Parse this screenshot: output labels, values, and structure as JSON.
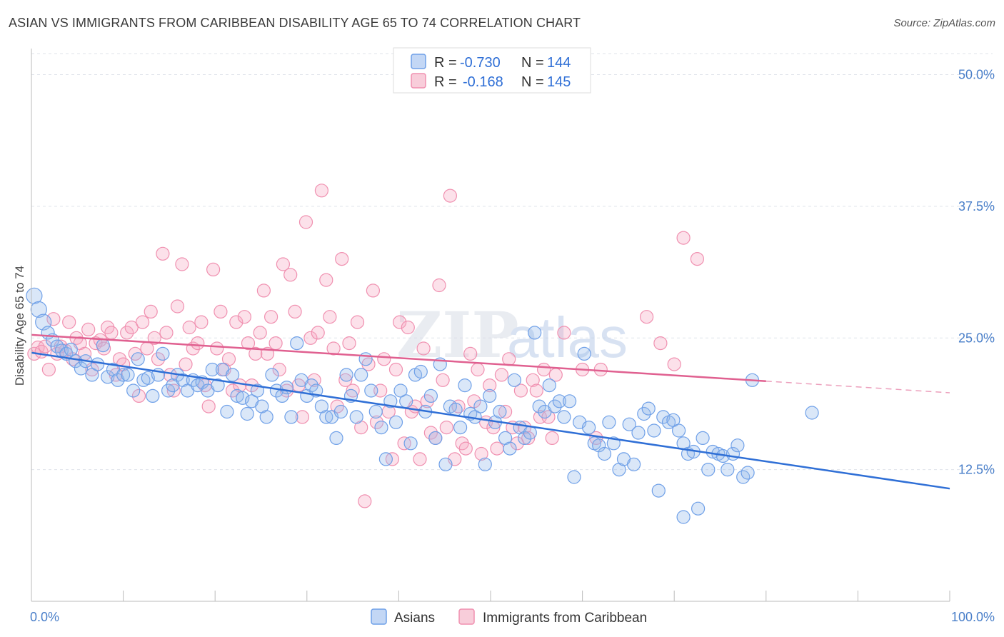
{
  "title": "ASIAN VS IMMIGRANTS FROM CARIBBEAN DISABILITY AGE 65 TO 74 CORRELATION CHART",
  "source": "Source: ZipAtlas.com",
  "watermark": {
    "zip": "ZIP",
    "atlas": "atlas"
  },
  "legend_top": {
    "r_label": "R =",
    "n_label": "N =",
    "rows": [
      {
        "r": "-0.730",
        "n": "144",
        "color": "#6fa0e8"
      },
      {
        "r": "-0.168",
        "n": "145",
        "color": "#f090b0"
      }
    ]
  },
  "legend_bottom": [
    "Asians",
    "Immigrants from Caribbean"
  ],
  "chart_data": {
    "type": "scatter",
    "xlabel": "",
    "ylabel": "Disability Age 65 to 74",
    "xlim": [
      0,
      100
    ],
    "ylim": [
      0,
      52
    ],
    "x_tick_labels": [
      "0.0%",
      "100.0%"
    ],
    "y_ticks": [
      12.5,
      25.0,
      37.5,
      50.0
    ],
    "y_tick_labels": [
      "12.5%",
      "25.0%",
      "37.5%",
      "50.0%"
    ],
    "grid": "horizontal dashed",
    "series": [
      {
        "name": "Asians",
        "color": "#6fa0e8",
        "line_color": "#2f6fd6",
        "trend": {
          "x0": 0,
          "y0": 23.6,
          "x1": 100,
          "y1": 10.7
        },
        "points": [
          [
            0.3,
            29.0
          ],
          [
            0.8,
            27.7
          ],
          [
            1.3,
            26.5
          ],
          [
            1.8,
            25.5
          ],
          [
            2.3,
            24.8
          ],
          [
            2.8,
            24.2
          ],
          [
            3.3,
            23.8
          ],
          [
            3.8,
            23.5
          ],
          [
            4.3,
            23.9
          ],
          [
            4.8,
            22.8
          ],
          [
            5.4,
            22.1
          ],
          [
            5.9,
            22.8
          ],
          [
            6.6,
            21.5
          ],
          [
            7.2,
            22.5
          ],
          [
            7.8,
            24.3
          ],
          [
            8.3,
            21.3
          ],
          [
            8.9,
            22.0
          ],
          [
            9.4,
            21.0
          ],
          [
            10.0,
            21.5
          ],
          [
            10.5,
            21.5
          ],
          [
            11.1,
            20.0
          ],
          [
            11.6,
            23.0
          ],
          [
            12.2,
            21.0
          ],
          [
            12.7,
            21.2
          ],
          [
            13.2,
            19.5
          ],
          [
            13.8,
            21.5
          ],
          [
            14.3,
            23.5
          ],
          [
            14.9,
            20.0
          ],
          [
            15.4,
            20.5
          ],
          [
            15.9,
            21.5
          ],
          [
            16.5,
            21.0
          ],
          [
            17.0,
            20.0
          ],
          [
            17.6,
            21.0
          ],
          [
            18.1,
            20.5
          ],
          [
            18.6,
            20.8
          ],
          [
            19.2,
            20.0
          ],
          [
            19.7,
            22.0
          ],
          [
            20.3,
            20.5
          ],
          [
            20.8,
            22.0
          ],
          [
            21.3,
            18.0
          ],
          [
            21.9,
            21.5
          ],
          [
            22.4,
            19.5
          ],
          [
            23.0,
            19.3
          ],
          [
            23.5,
            17.8
          ],
          [
            24.0,
            19.0
          ],
          [
            24.6,
            20.0
          ],
          [
            25.1,
            18.5
          ],
          [
            25.6,
            17.5
          ],
          [
            26.2,
            21.5
          ],
          [
            26.7,
            20.0
          ],
          [
            27.3,
            19.5
          ],
          [
            27.8,
            20.3
          ],
          [
            28.3,
            17.5
          ],
          [
            28.9,
            24.5
          ],
          [
            29.4,
            21.0
          ],
          [
            30.0,
            19.5
          ],
          [
            30.5,
            20.5
          ],
          [
            31.0,
            20.0
          ],
          [
            31.6,
            18.5
          ],
          [
            32.1,
            17.5
          ],
          [
            32.7,
            17.5
          ],
          [
            33.2,
            15.5
          ],
          [
            33.7,
            18.0
          ],
          [
            34.3,
            21.5
          ],
          [
            34.8,
            19.5
          ],
          [
            35.4,
            17.5
          ],
          [
            35.9,
            21.5
          ],
          [
            36.4,
            23.0
          ],
          [
            37.0,
            20.0
          ],
          [
            37.5,
            18.0
          ],
          [
            38.1,
            16.5
          ],
          [
            38.6,
            13.5
          ],
          [
            39.1,
            19.0
          ],
          [
            39.7,
            17.0
          ],
          [
            40.2,
            20.0
          ],
          [
            40.8,
            19.0
          ],
          [
            41.3,
            15.0
          ],
          [
            41.8,
            21.5
          ],
          [
            42.4,
            21.8
          ],
          [
            42.9,
            18.0
          ],
          [
            43.5,
            19.5
          ],
          [
            44.0,
            15.5
          ],
          [
            44.5,
            22.5
          ],
          [
            45.1,
            13.0
          ],
          [
            45.6,
            18.5
          ],
          [
            46.2,
            18.2
          ],
          [
            46.7,
            16.5
          ],
          [
            47.2,
            20.5
          ],
          [
            47.8,
            17.8
          ],
          [
            48.3,
            17.5
          ],
          [
            48.9,
            18.5
          ],
          [
            49.4,
            13.0
          ],
          [
            49.9,
            19.5
          ],
          [
            50.5,
            17.0
          ],
          [
            51.0,
            18.0
          ],
          [
            51.6,
            15.5
          ],
          [
            52.1,
            14.5
          ],
          [
            52.6,
            21.0
          ],
          [
            53.2,
            16.5
          ],
          [
            53.7,
            15.5
          ],
          [
            54.3,
            16.0
          ],
          [
            54.8,
            25.5
          ],
          [
            55.3,
            18.5
          ],
          [
            55.9,
            18.0
          ],
          [
            56.4,
            20.5
          ],
          [
            57.0,
            18.5
          ],
          [
            57.5,
            19.0
          ],
          [
            58.0,
            17.5
          ],
          [
            58.6,
            19.0
          ],
          [
            59.1,
            11.8
          ],
          [
            59.7,
            17.0
          ],
          [
            60.2,
            23.5
          ],
          [
            60.7,
            16.5
          ],
          [
            61.3,
            15.0
          ],
          [
            61.8,
            14.8
          ],
          [
            62.4,
            14.0
          ],
          [
            62.9,
            17.0
          ],
          [
            63.4,
            15.0
          ],
          [
            64.0,
            12.5
          ],
          [
            64.5,
            13.5
          ],
          [
            65.1,
            16.8
          ],
          [
            65.6,
            13.0
          ],
          [
            66.1,
            16.0
          ],
          [
            66.7,
            17.8
          ],
          [
            67.2,
            18.3
          ],
          [
            67.8,
            16.2
          ],
          [
            68.3,
            10.5
          ],
          [
            68.8,
            17.5
          ],
          [
            69.4,
            17.0
          ],
          [
            69.9,
            17.2
          ],
          [
            70.5,
            16.2
          ],
          [
            71.0,
            15.0
          ],
          [
            71.5,
            14.0
          ],
          [
            72.1,
            14.2
          ],
          [
            72.6,
            8.8
          ],
          [
            73.1,
            15.5
          ],
          [
            73.7,
            12.5
          ],
          [
            74.2,
            14.2
          ],
          [
            74.8,
            14.0
          ],
          [
            75.3,
            13.8
          ],
          [
            75.8,
            12.5
          ],
          [
            76.4,
            14.0
          ],
          [
            76.9,
            14.8
          ],
          [
            77.5,
            11.8
          ],
          [
            78.0,
            12.2
          ],
          [
            78.5,
            21.0
          ],
          [
            85.0,
            17.9
          ],
          [
            71.0,
            8.0
          ]
        ]
      },
      {
        "name": "Immigrants from Caribbean",
        "color": "#f090b0",
        "line_color": "#e06090",
        "trend": {
          "x0": 0,
          "y0": 25.3,
          "x1": 80,
          "y1": 20.9
        },
        "trend_dashed": {
          "x0": 80,
          "y0": 20.9,
          "x1": 100,
          "y1": 19.8
        },
        "points": [
          [
            0.3,
            23.5
          ],
          [
            0.7,
            24.1
          ],
          [
            1.1,
            23.7
          ],
          [
            1.5,
            24.2
          ],
          [
            1.9,
            22.0
          ],
          [
            2.4,
            26.8
          ],
          [
            2.8,
            23.5
          ],
          [
            3.2,
            24.2
          ],
          [
            3.7,
            23.8
          ],
          [
            4.1,
            26.5
          ],
          [
            4.5,
            23.0
          ],
          [
            4.9,
            25.0
          ],
          [
            5.3,
            24.5
          ],
          [
            5.8,
            23.5
          ],
          [
            6.2,
            25.8
          ],
          [
            6.6,
            22.0
          ],
          [
            7.0,
            24.5
          ],
          [
            7.5,
            24.8
          ],
          [
            7.9,
            24.0
          ],
          [
            8.3,
            26.0
          ],
          [
            8.7,
            25.5
          ],
          [
            9.2,
            21.5
          ],
          [
            9.6,
            23.0
          ],
          [
            10.0,
            22.5
          ],
          [
            10.4,
            25.5
          ],
          [
            10.9,
            26.0
          ],
          [
            11.3,
            23.5
          ],
          [
            11.7,
            19.5
          ],
          [
            12.1,
            26.5
          ],
          [
            12.6,
            24.0
          ],
          [
            13.0,
            27.5
          ],
          [
            13.4,
            25.0
          ],
          [
            13.8,
            23.0
          ],
          [
            14.3,
            33.0
          ],
          [
            14.7,
            25.5
          ],
          [
            15.1,
            21.5
          ],
          [
            15.5,
            20.0
          ],
          [
            15.9,
            28.0
          ],
          [
            16.4,
            32.0
          ],
          [
            16.8,
            22.5
          ],
          [
            17.2,
            26.0
          ],
          [
            17.6,
            24.0
          ],
          [
            18.1,
            24.5
          ],
          [
            18.5,
            26.5
          ],
          [
            18.9,
            20.5
          ],
          [
            19.3,
            18.5
          ],
          [
            19.8,
            31.5
          ],
          [
            20.2,
            24.0
          ],
          [
            20.6,
            27.5
          ],
          [
            21.0,
            22.0
          ],
          [
            21.5,
            23.0
          ],
          [
            21.9,
            20.0
          ],
          [
            22.3,
            26.5
          ],
          [
            22.7,
            20.5
          ],
          [
            23.2,
            27.0
          ],
          [
            23.6,
            24.5
          ],
          [
            24.0,
            20.5
          ],
          [
            24.4,
            23.5
          ],
          [
            24.9,
            25.5
          ],
          [
            25.3,
            29.5
          ],
          [
            25.7,
            23.5
          ],
          [
            26.1,
            27.0
          ],
          [
            26.6,
            24.5
          ],
          [
            27.0,
            22.0
          ],
          [
            27.4,
            32.0
          ],
          [
            27.8,
            20.0
          ],
          [
            28.2,
            31.0
          ],
          [
            28.7,
            27.5
          ],
          [
            29.1,
            20.5
          ],
          [
            29.5,
            17.5
          ],
          [
            29.9,
            36.0
          ],
          [
            30.4,
            25.0
          ],
          [
            30.8,
            21.0
          ],
          [
            31.2,
            25.5
          ],
          [
            31.6,
            39.0
          ],
          [
            32.1,
            30.5
          ],
          [
            32.5,
            27.0
          ],
          [
            32.9,
            24.0
          ],
          [
            33.3,
            18.5
          ],
          [
            33.8,
            32.5
          ],
          [
            34.2,
            21.0
          ],
          [
            34.6,
            24.5
          ],
          [
            35.0,
            20.0
          ],
          [
            35.5,
            26.5
          ],
          [
            35.9,
            16.5
          ],
          [
            36.3,
            9.5
          ],
          [
            36.7,
            22.5
          ],
          [
            37.2,
            29.5
          ],
          [
            37.6,
            17.0
          ],
          [
            38.0,
            20.0
          ],
          [
            38.4,
            23.0
          ],
          [
            38.9,
            18.0
          ],
          [
            39.3,
            13.5
          ],
          [
            39.7,
            22.0
          ],
          [
            40.1,
            26.5
          ],
          [
            40.6,
            15.0
          ],
          [
            41.0,
            26.0
          ],
          [
            41.4,
            18.0
          ],
          [
            41.8,
            18.5
          ],
          [
            42.3,
            13.5
          ],
          [
            42.7,
            24.0
          ],
          [
            43.1,
            19.0
          ],
          [
            43.5,
            16.0
          ],
          [
            44.0,
            15.5
          ],
          [
            44.4,
            30.0
          ],
          [
            44.8,
            21.0
          ],
          [
            45.2,
            16.5
          ],
          [
            45.6,
            38.5
          ],
          [
            46.1,
            13.5
          ],
          [
            46.5,
            18.5
          ],
          [
            46.9,
            15.0
          ],
          [
            47.3,
            14.5
          ],
          [
            47.8,
            23.5
          ],
          [
            48.2,
            19.0
          ],
          [
            48.6,
            22.0
          ],
          [
            49.0,
            14.0
          ],
          [
            49.5,
            17.0
          ],
          [
            49.9,
            20.5
          ],
          [
            50.3,
            16.5
          ],
          [
            50.7,
            14.5
          ],
          [
            51.2,
            21.5
          ],
          [
            51.6,
            18.0
          ],
          [
            52.0,
            23.0
          ],
          [
            52.4,
            16.5
          ],
          [
            52.9,
            15.0
          ],
          [
            53.3,
            20.0
          ],
          [
            53.7,
            16.5
          ],
          [
            54.1,
            15.5
          ],
          [
            54.6,
            21.0
          ],
          [
            55.0,
            20.0
          ],
          [
            55.4,
            17.5
          ],
          [
            55.8,
            22.0
          ],
          [
            56.3,
            17.5
          ],
          [
            56.7,
            15.5
          ],
          [
            57.1,
            21.5
          ],
          [
            58.0,
            25.5
          ],
          [
            60.0,
            22.0
          ],
          [
            61.5,
            15.5
          ],
          [
            62.0,
            22.0
          ],
          [
            67.0,
            27.0
          ],
          [
            68.5,
            24.5
          ],
          [
            70.0,
            22.5
          ],
          [
            71.0,
            34.5
          ],
          [
            72.5,
            32.5
          ]
        ]
      }
    ]
  }
}
